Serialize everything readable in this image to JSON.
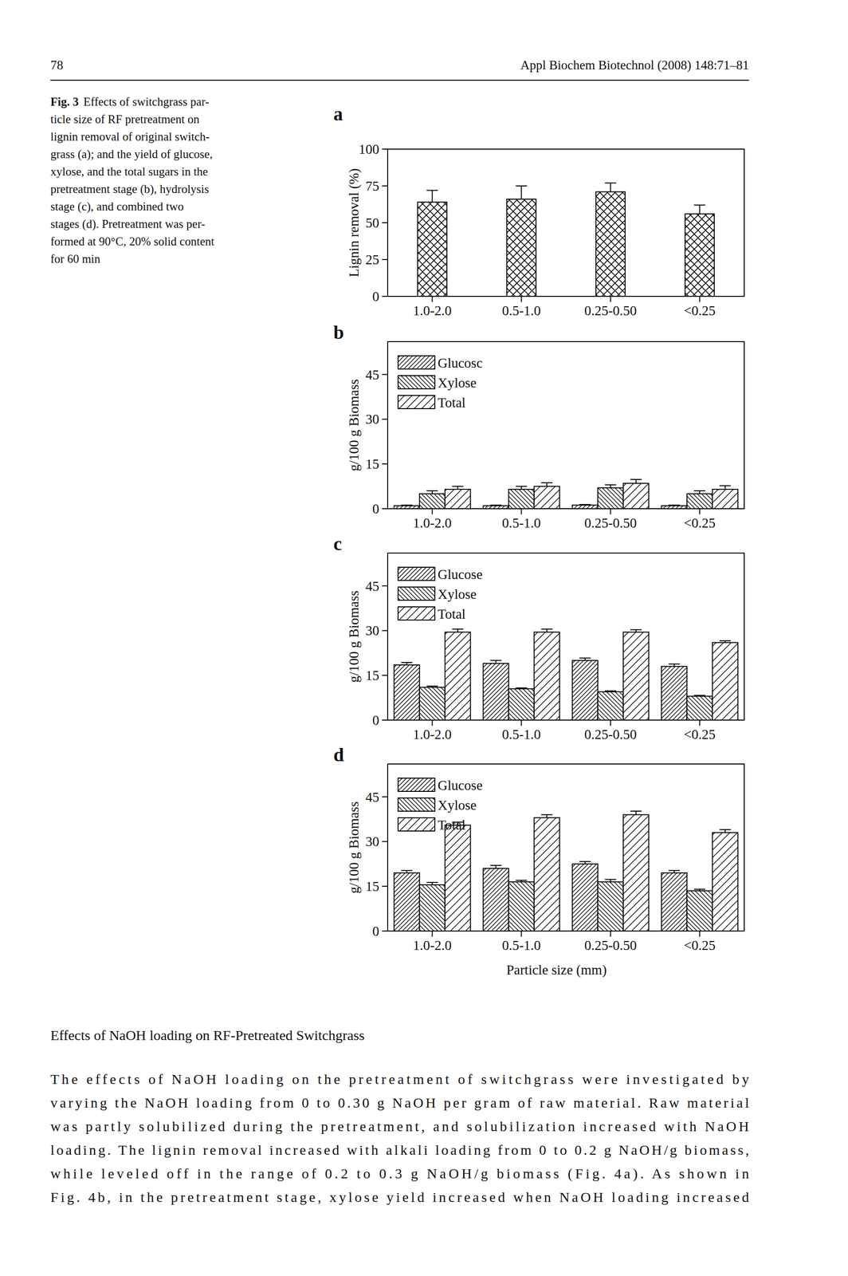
{
  "header": {
    "page": "78",
    "journal": "Appl Biochem Biotechnol (2008) 148:71–81"
  },
  "caption": {
    "label": "Fig. 3",
    "lines": [
      "Effects of switchgrass par-",
      "ticle size of RF pretreatment on",
      "lignin removal of original switch-",
      "grass (a); and the yield of glucose,",
      "xylose, and the total sugars in the",
      "pretreatment stage (b), hydrolysis",
      "stage (c), and combined two",
      "stages (d). Pretreatment was per-",
      "formed at 90°C, 20% solid content",
      "for 60 min"
    ]
  },
  "chart_data": [
    {
      "type": "bar",
      "title": "a",
      "ylabel": "Lignin removal (%)",
      "categories": [
        "1.0-2.0",
        "0.5-1.0",
        "0.25-0.50",
        "<0.25"
      ],
      "values": [
        64,
        66,
        71,
        56
      ],
      "errors": [
        8,
        9,
        6,
        6
      ],
      "color": "#000000",
      "ylim": [
        0,
        100
      ],
      "yticks": [
        0,
        25,
        50,
        75,
        100
      ]
    },
    {
      "type": "bar",
      "title": "b",
      "ylabel": "g/100 g Biomass",
      "categories": [
        "1.0-2.0",
        "0.5-1.0",
        "0.25-0.50",
        "<0.25"
      ],
      "series": [
        {
          "name": "Glucosc",
          "color": "#000000",
          "values": [
            1,
            1,
            1.2,
            1
          ],
          "errors": [
            0.2,
            0.2,
            0.2,
            0.2
          ]
        },
        {
          "name": "Xylose",
          "color": "#000000",
          "values": [
            5,
            6.5,
            7,
            5
          ],
          "errors": [
            1,
            1,
            1,
            1
          ]
        },
        {
          "name": "Total",
          "color": "#000000",
          "values": [
            6.5,
            7.5,
            8.5,
            6.5
          ],
          "errors": [
            1,
            1.2,
            1.3,
            1.2
          ]
        }
      ],
      "ylim": [
        0,
        56
      ],
      "yticks": [
        0,
        15,
        30,
        45
      ],
      "legend": "upper left"
    },
    {
      "type": "bar",
      "title": "c",
      "ylabel": "g/100 g Biomass",
      "categories": [
        "1.0-2.0",
        "0.5-1.0",
        "0.25-0.50",
        "<0.25"
      ],
      "series": [
        {
          "name": "Glucose",
          "color": "#000000",
          "values": [
            18.5,
            19,
            20,
            18
          ],
          "errors": [
            0.8,
            1,
            0.8,
            0.8
          ]
        },
        {
          "name": "Xylose",
          "color": "#000000",
          "values": [
            11,
            10.5,
            9.5,
            8
          ],
          "errors": [
            0.4,
            0.3,
            0.3,
            0.3
          ]
        },
        {
          "name": "Total",
          "color": "#000000",
          "values": [
            29.5,
            29.5,
            29.5,
            26
          ],
          "errors": [
            1,
            1,
            0.8,
            0.6
          ]
        }
      ],
      "ylim": [
        0,
        56
      ],
      "yticks": [
        0,
        15,
        30,
        45
      ],
      "legend": "upper left"
    },
    {
      "type": "bar",
      "title": "d",
      "ylabel": "g/100 g Biomass",
      "xlabel": "Particle size (mm)",
      "categories": [
        "1.0-2.0",
        "0.5-1.0",
        "0.25-0.50",
        "<0.25"
      ],
      "series": [
        {
          "name": "Glucose",
          "color": "#000000",
          "values": [
            19.5,
            21,
            22.5,
            19.5
          ],
          "errors": [
            0.8,
            1,
            0.8,
            0.8
          ]
        },
        {
          "name": "Xylose",
          "color": "#000000",
          "values": [
            15.5,
            16.5,
            16.5,
            13.5
          ],
          "errors": [
            0.8,
            0.5,
            0.8,
            0.5
          ]
        },
        {
          "name": "Total",
          "color": "#000000",
          "values": [
            35.5,
            38,
            39,
            33
          ],
          "errors": [
            1,
            1,
            1.2,
            1
          ]
        }
      ],
      "ylim": [
        0,
        56
      ],
      "yticks": [
        0,
        15,
        30,
        45
      ],
      "legend": "upper left"
    }
  ],
  "body": {
    "heading": "Effects of NaOH loading on RF-Pretreated Switchgrass",
    "lines": [
      "The effects of NaOH loading on the pretreatment of switchgrass were investigated by",
      "varying the NaOH loading from 0 to 0.30 g NaOH per gram of raw material. Raw material",
      "was partly solubilized during the pretreatment, and solubilization increased with NaOH",
      "loading. The lignin removal increased with alkali loading from 0 to 0.2 g NaOH/g biomass,",
      "while leveled off in the range of 0.2 to 0.3 g NaOH/g biomass (Fig. 4a). As shown in",
      "Fig. 4b, in the pretreatment stage, xylose yield increased when NaOH loading increased"
    ]
  }
}
